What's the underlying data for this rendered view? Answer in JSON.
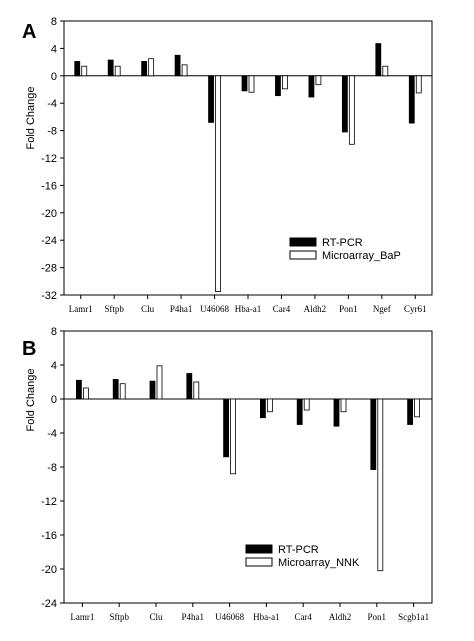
{
  "chart_data": [
    {
      "type": "bar",
      "panel": "A",
      "ylabel": "Fold Change",
      "xlabel": "",
      "ylim": [
        -32,
        8
      ],
      "yticks": [
        8,
        4,
        0,
        -4,
        -8,
        -12,
        -16,
        -20,
        -24,
        -28,
        -32
      ],
      "categories": [
        "Lamr1",
        "Sftpb",
        "Clu",
        "P4ha1",
        "U46068",
        "Hba-a1",
        "Car4",
        "Aldh2",
        "Pon1",
        "Ngef",
        "Cyr61"
      ],
      "series": [
        {
          "name": "RT-PCR",
          "color": "#000000",
          "values": [
            2.1,
            2.3,
            2.1,
            3.0,
            -6.8,
            -2.2,
            -2.9,
            -3.1,
            -8.2,
            4.7,
            -6.9
          ]
        },
        {
          "name": "Microarray_BaP",
          "color": "#ffffff",
          "values": [
            1.4,
            1.4,
            2.5,
            1.6,
            -31.5,
            -2.4,
            -1.9,
            -1.3,
            -10.0,
            1.4,
            -2.5
          ]
        }
      ],
      "legend_placement": "bottom-right",
      "grid": false
    },
    {
      "type": "bar",
      "panel": "B",
      "ylabel": "Fold Change",
      "xlabel": "",
      "ylim": [
        -24,
        8
      ],
      "yticks": [
        8,
        4,
        0,
        -4,
        -8,
        -12,
        -16,
        -20,
        -24
      ],
      "categories": [
        "Lamr1",
        "Sftpb",
        "Clu",
        "P4ha1",
        "U46068",
        "Hba-a1",
        "Car4",
        "Aldh2",
        "Pon1",
        "Scgb1a1"
      ],
      "series": [
        {
          "name": "RT-PCR",
          "color": "#000000",
          "values": [
            2.2,
            2.3,
            2.1,
            3.0,
            -6.8,
            -2.2,
            -3.0,
            -3.2,
            -8.3,
            -3.0
          ]
        },
        {
          "name": "Microarray_NNK",
          "color": "#ffffff",
          "values": [
            1.3,
            1.8,
            3.9,
            2.0,
            -8.8,
            -1.5,
            -1.3,
            -1.5,
            -20.2,
            -2.1
          ]
        }
      ],
      "legend_placement": "bottom-right",
      "grid": false
    }
  ]
}
